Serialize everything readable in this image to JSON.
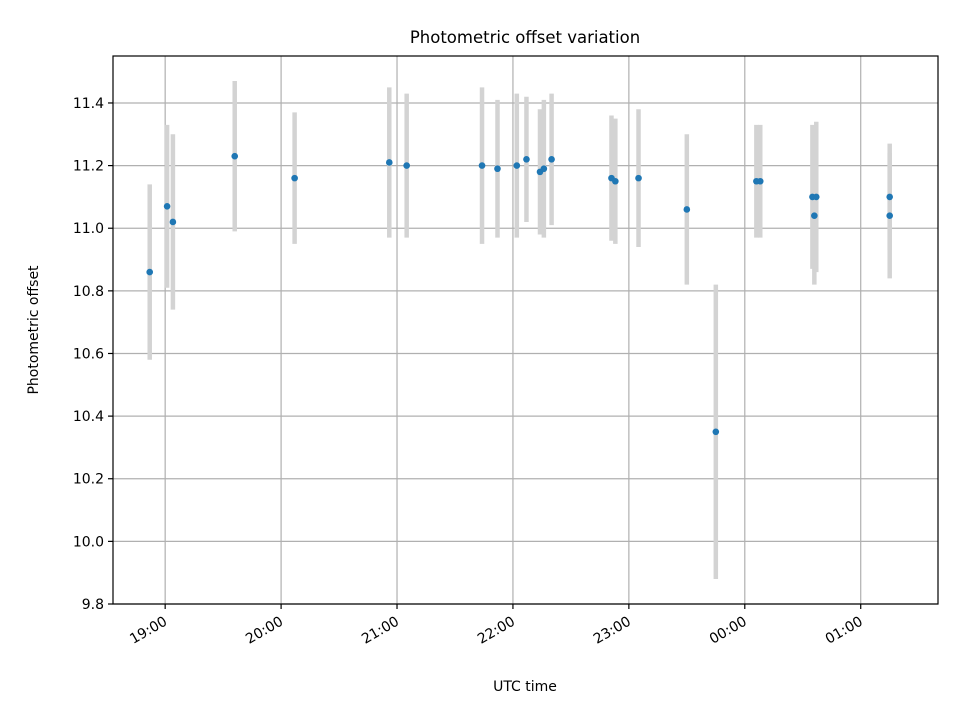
{
  "chart_data": {
    "type": "scatter",
    "title": "Photometric offset variation",
    "xlabel": "UTC time",
    "ylabel": "Photometric offset",
    "x_axis": {
      "kind": "time",
      "range": [
        "18:33",
        "01:40"
      ],
      "tick_labels": [
        "19:00",
        "20:00",
        "21:00",
        "22:00",
        "23:00",
        "00:00",
        "01:00"
      ],
      "tick_times": [
        "19:00",
        "20:00",
        "21:00",
        "22:00",
        "23:00",
        "00:00",
        "01:00"
      ]
    },
    "y_axis": {
      "range": [
        9.8,
        11.55
      ],
      "ticks": [
        9.8,
        10.0,
        10.2,
        10.4,
        10.6,
        10.8,
        11.0,
        11.2,
        11.4
      ],
      "tick_labels": [
        "9.8",
        "10.0",
        "10.2",
        "10.4",
        "10.6",
        "10.8",
        "11.0",
        "11.2",
        "11.4"
      ]
    },
    "grid": true,
    "colors": {
      "point": "#1f77b4",
      "errorbar": "#d3d3d3",
      "grid": "#b0b0b0"
    },
    "points": [
      {
        "time": "18:52",
        "y": 10.86,
        "err": 0.28
      },
      {
        "time": "19:01",
        "y": 11.07,
        "err": 0.26
      },
      {
        "time": "19:04",
        "y": 11.02,
        "err": 0.28
      },
      {
        "time": "19:36",
        "y": 11.23,
        "err": 0.24
      },
      {
        "time": "20:07",
        "y": 11.16,
        "err": 0.21
      },
      {
        "time": "20:56",
        "y": 11.21,
        "err": 0.24
      },
      {
        "time": "21:05",
        "y": 11.2,
        "err": 0.23
      },
      {
        "time": "21:44",
        "y": 11.2,
        "err": 0.25
      },
      {
        "time": "21:52",
        "y": 11.19,
        "err": 0.22
      },
      {
        "time": "22:02",
        "y": 11.2,
        "err": 0.23
      },
      {
        "time": "22:07",
        "y": 11.22,
        "err": 0.2
      },
      {
        "time": "22:14",
        "y": 11.18,
        "err": 0.2
      },
      {
        "time": "22:16",
        "y": 11.19,
        "err": 0.22
      },
      {
        "time": "22:20",
        "y": 11.22,
        "err": 0.21
      },
      {
        "time": "22:51",
        "y": 11.16,
        "err": 0.2
      },
      {
        "time": "22:53",
        "y": 11.15,
        "err": 0.2
      },
      {
        "time": "23:05",
        "y": 11.16,
        "err": 0.22
      },
      {
        "time": "23:30",
        "y": 11.06,
        "err": 0.24
      },
      {
        "time": "23:45",
        "y": 10.35,
        "err": 0.47
      },
      {
        "time": "00:06",
        "y": 11.15,
        "err": 0.18
      },
      {
        "time": "00:08",
        "y": 11.15,
        "err": 0.18
      },
      {
        "time": "00:35",
        "y": 11.1,
        "err": 0.23
      },
      {
        "time": "00:36",
        "y": 11.04,
        "err": 0.22
      },
      {
        "time": "00:37",
        "y": 11.1,
        "err": 0.24
      },
      {
        "time": "01:15",
        "y": 11.1,
        "err": 0.17
      },
      {
        "time": "01:15",
        "y": 11.04,
        "err": 0.2
      }
    ]
  }
}
